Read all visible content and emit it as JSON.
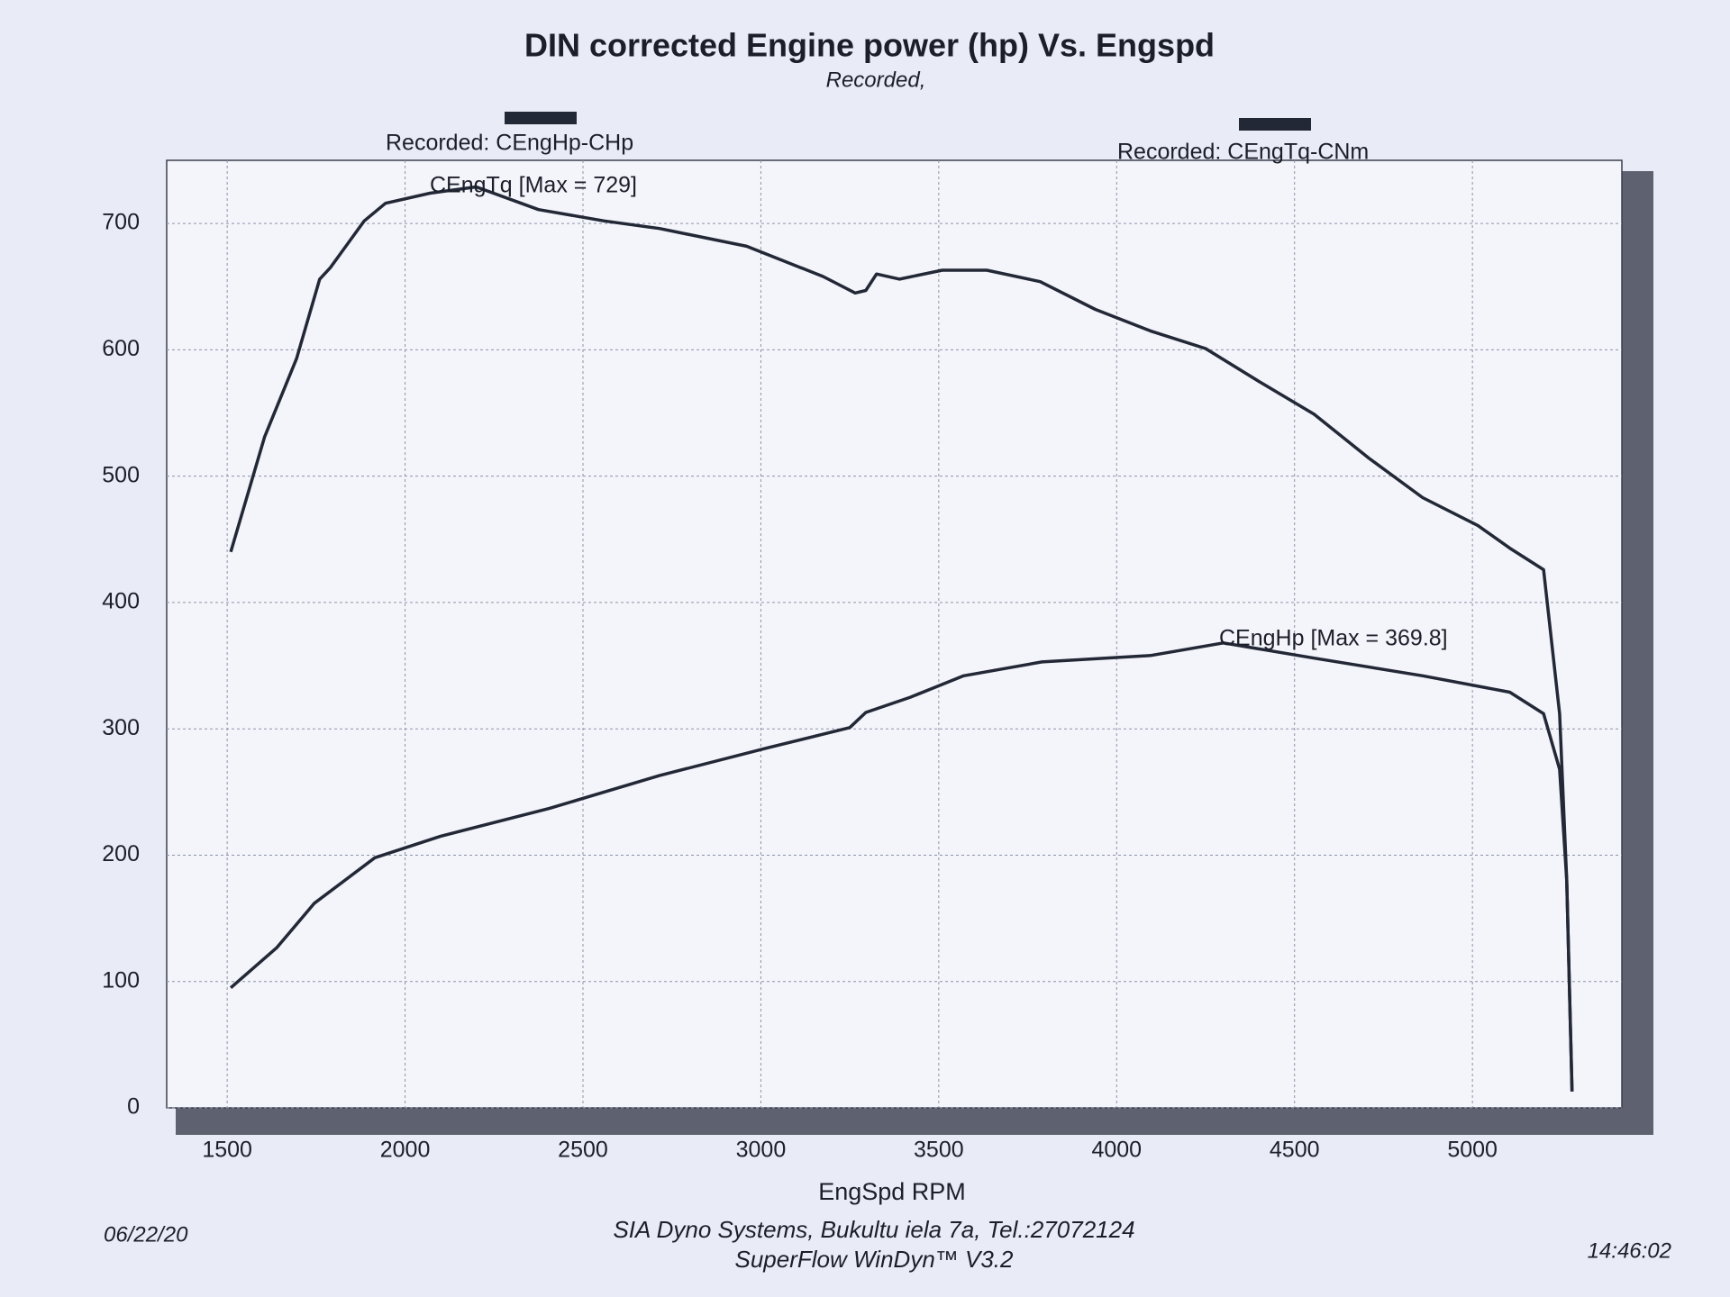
{
  "chart_data": {
    "type": "line",
    "title": "DIN corrected Engine power (hp) Vs. Engspd",
    "subtitle": "Recorded,",
    "x_label": "EngSpd RPM",
    "xlim": [
      1330,
      5420
    ],
    "xticks": [
      1500,
      2000,
      2500,
      3000,
      3500,
      4000,
      4500,
      5000
    ],
    "ylim": [
      0,
      750
    ],
    "yticks": [
      0,
      100,
      200,
      300,
      400,
      500,
      600,
      700
    ],
    "grid": true,
    "series": [
      {
        "name": "Recorded: CEngHp-CHp",
        "color": "#232836",
        "annotation": "CEngHp [Max = 369.8]",
        "x": [
          1510,
          1640,
          1745,
          1915,
          2100,
          2405,
          2715,
          3020,
          3250,
          3295,
          3420,
          3570,
          3790,
          4095,
          4300,
          4555,
          4860,
          5105,
          5200,
          5245,
          5265,
          5280
        ],
        "values": [
          95,
          127,
          162,
          198,
          215,
          237,
          263,
          285,
          301,
          313,
          325,
          342,
          353,
          358,
          368,
          356,
          342,
          329,
          312,
          268,
          180,
          13
        ]
      },
      {
        "name": "Recorded: CEngTq-CNm",
        "color": "#232836",
        "annotation": "CEngTq [Max = 729]",
        "x": [
          1510,
          1605,
          1695,
          1760,
          1790,
          1885,
          1945,
          2070,
          2200,
          2375,
          2560,
          2715,
          2960,
          3175,
          3265,
          3295,
          3325,
          3390,
          3510,
          3635,
          3785,
          3940,
          4095,
          4250,
          4400,
          4555,
          4710,
          4860,
          5015,
          5105,
          5200,
          5245,
          5265,
          5280
        ],
        "values": [
          440,
          531,
          593,
          656,
          665,
          702,
          716,
          724,
          729,
          711,
          702,
          696,
          682,
          658,
          645,
          647,
          660,
          656,
          663,
          663,
          654,
          632,
          615,
          601,
          575,
          549,
          514,
          483,
          461,
          443,
          426,
          312,
          180,
          13
        ]
      }
    ],
    "footer": {
      "date": "06/22/20",
      "company": "SIA Dyno Systems, Bukultu iela 7a, Tel.:27072124",
      "software": "SuperFlow WinDyn™ V3.2",
      "time": "14:46:02"
    }
  }
}
